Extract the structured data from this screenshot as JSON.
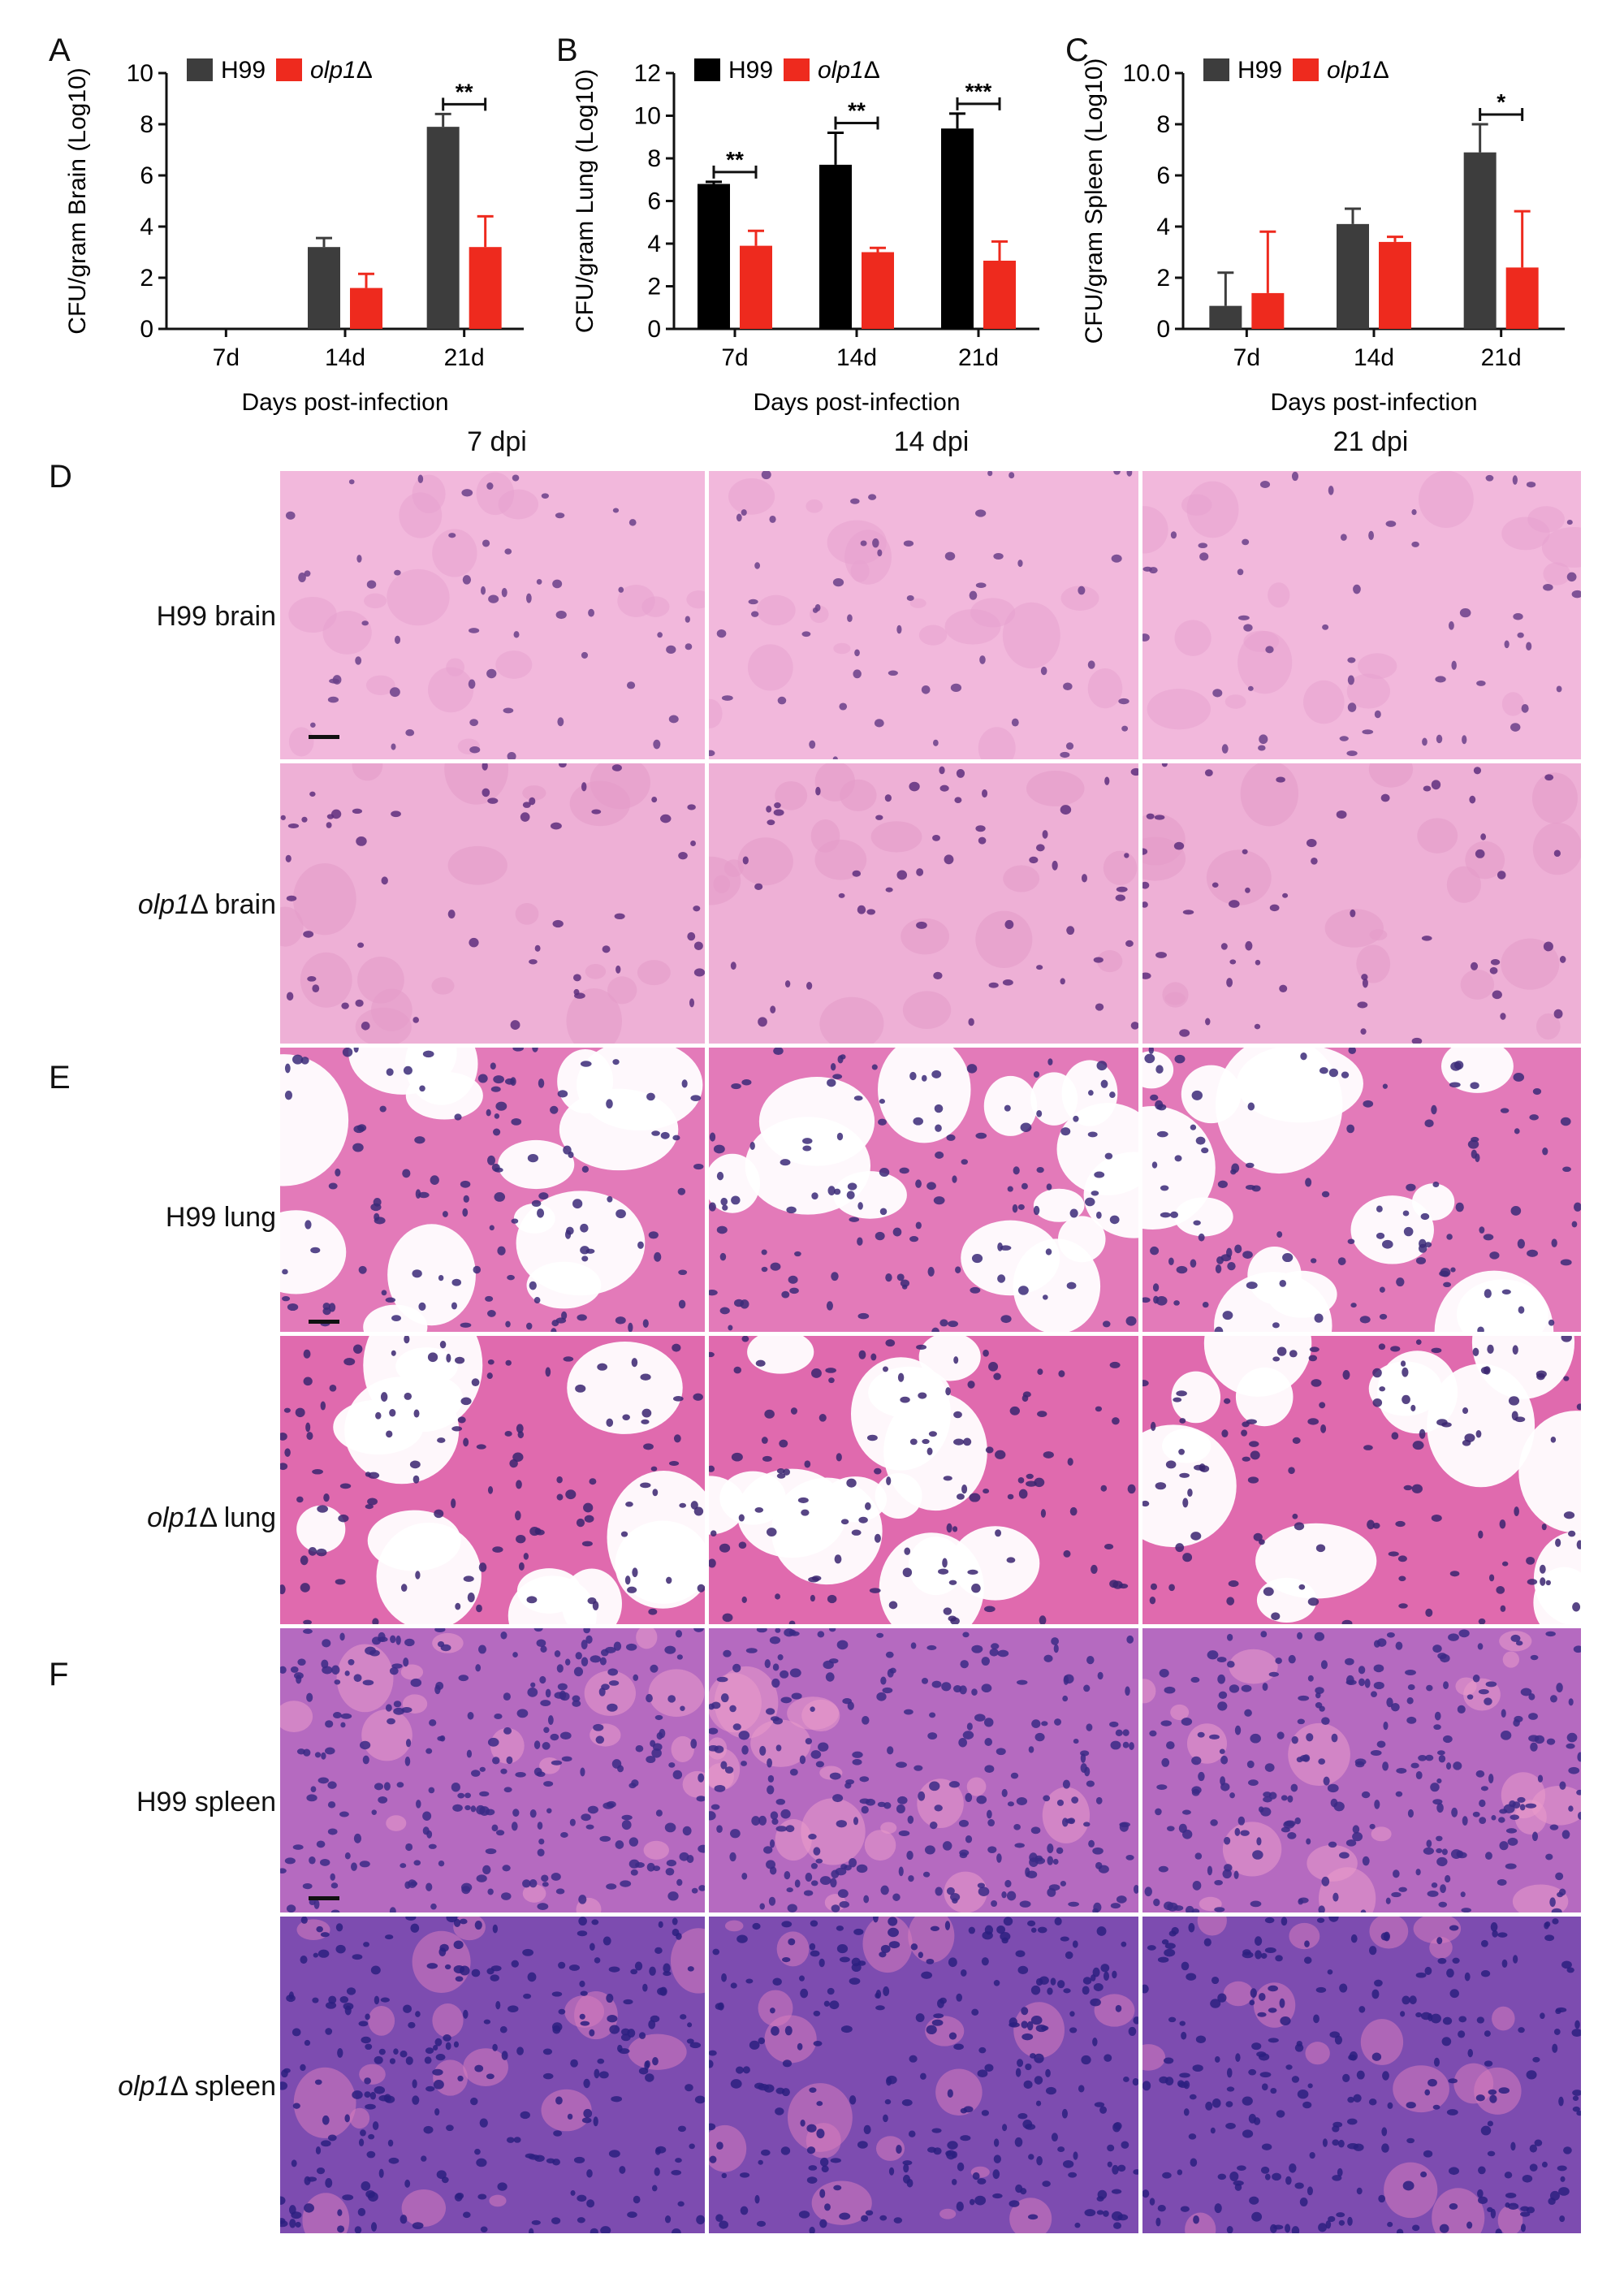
{
  "panels": {
    "A": "A",
    "B": "B",
    "C": "C",
    "D": "D",
    "E": "E",
    "F": "F"
  },
  "chart_data": [
    {
      "type": "bar",
      "panel": "A",
      "categories": [
        "7d",
        "14d",
        "21d"
      ],
      "series": [
        {
          "name": "H99",
          "values": [
            0,
            3.2,
            7.9
          ],
          "errors": [
            0,
            0.35,
            0.5
          ],
          "color": "#3d3d3d"
        },
        {
          "name": "olp1Δ",
          "values": [
            0,
            1.6,
            3.2
          ],
          "errors": [
            0,
            0.55,
            1.2
          ],
          "color": "#ee2a1e"
        }
      ],
      "ylabel": "CFU/gram Brain (Log10)",
      "xlabel": "Days post-infection",
      "ylim": [
        0,
        10
      ],
      "yticks": [
        "0",
        "2",
        "4",
        "6",
        "8",
        "10"
      ],
      "significance": [
        {
          "category": "21d",
          "label": "**"
        }
      ],
      "legend": "top"
    },
    {
      "type": "bar",
      "panel": "B",
      "categories": [
        "7d",
        "14d",
        "21d"
      ],
      "series": [
        {
          "name": "H99",
          "values": [
            6.8,
            7.7,
            9.4
          ],
          "errors": [
            0.1,
            1.5,
            0.7
          ],
          "color": "#000000"
        },
        {
          "name": "olp1Δ",
          "values": [
            3.9,
            3.6,
            3.2
          ],
          "errors": [
            0.7,
            0.2,
            0.9
          ],
          "color": "#ee2a1e"
        }
      ],
      "ylabel": "CFU/gram Lung (Log10)",
      "xlabel": "Days post-infection",
      "ylim": [
        0,
        12
      ],
      "yticks": [
        "0",
        "2",
        "4",
        "6",
        "8",
        "10",
        "12"
      ],
      "significance": [
        {
          "category": "7d",
          "label": "**"
        },
        {
          "category": "14d",
          "label": "**"
        },
        {
          "category": "21d",
          "label": "***"
        }
      ],
      "legend": "top"
    },
    {
      "type": "bar",
      "panel": "C",
      "categories": [
        "7d",
        "14d",
        "21d"
      ],
      "series": [
        {
          "name": "H99",
          "values": [
            0.9,
            4.1,
            6.9
          ],
          "errors": [
            1.3,
            0.6,
            1.1
          ],
          "color": "#3d3d3d"
        },
        {
          "name": "olp1Δ",
          "values": [
            1.4,
            3.4,
            2.4
          ],
          "errors": [
            2.4,
            0.2,
            2.2
          ],
          "color": "#ee2a1e"
        }
      ],
      "ylabel": "CFU/gram Spleen (Log10)",
      "xlabel": "Days post-infection",
      "ylim": [
        0,
        10
      ],
      "yticks": [
        "0",
        "2",
        "4",
        "6",
        "8",
        "10.0"
      ],
      "significance": [
        {
          "category": "21d",
          "label": "*"
        }
      ],
      "legend": "top"
    }
  ],
  "histology": {
    "columns": [
      "7 dpi",
      "14 dpi",
      "21 dpi"
    ],
    "rows": [
      {
        "strain": "H99",
        "strain_italic": false,
        "tissue": " brain",
        "palette": {
          "bg": "#f2b8dc",
          "cell": "#6b3f8a",
          "accent": "#e7a2cf"
        }
      },
      {
        "strain": "olp1",
        "strain_italic": true,
        "delta": "Δ",
        "tissue": " brain",
        "palette": {
          "bg": "#eeb0d6",
          "cell": "#5e2f7e",
          "accent": "#e39bc9"
        }
      },
      {
        "strain": "H99",
        "strain_italic": false,
        "tissue": " lung",
        "palette": {
          "bg": "#e37ab9",
          "cell": "#3b2a78",
          "accent": "#ffffff"
        }
      },
      {
        "strain": "olp1",
        "strain_italic": true,
        "delta": "Δ",
        "tissue": " lung",
        "palette": {
          "bg": "#e06aae",
          "cell": "#3a2470",
          "accent": "#ffffff"
        }
      },
      {
        "strain": "H99",
        "strain_italic": false,
        "tissue": " spleen",
        "palette": {
          "bg": "#b56ac0",
          "cell": "#3b2a86",
          "accent": "#e99acb"
        }
      },
      {
        "strain": "olp1",
        "strain_italic": true,
        "delta": "Δ",
        "tissue": " spleen",
        "palette": {
          "bg": "#7d4cb0",
          "cell": "#2c2080",
          "accent": "#d77bbd"
        }
      }
    ]
  }
}
